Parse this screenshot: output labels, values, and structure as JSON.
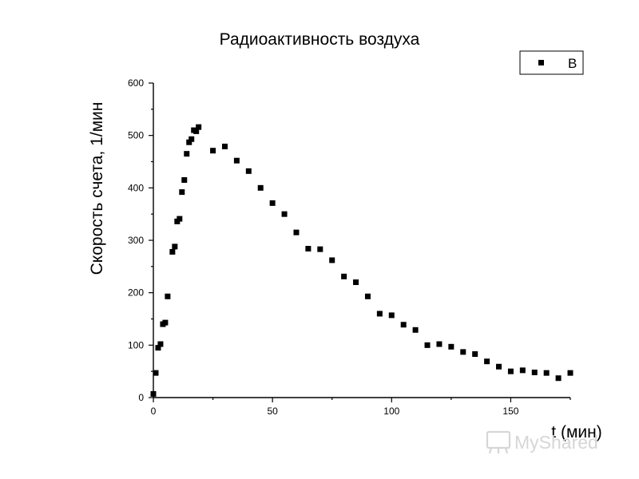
{
  "chart_data": {
    "type": "scatter",
    "title": "Радиоактивность воздуха",
    "xlabel": "t (мин)",
    "ylabel": "Скорость счета, 1/мин",
    "xlim": [
      0,
      175
    ],
    "ylim": [
      0,
      600
    ],
    "xticks": [
      0,
      50,
      100,
      150
    ],
    "yticks": [
      0,
      100,
      200,
      300,
      400,
      500,
      600
    ],
    "xtick_labels": [
      "0",
      "50",
      "100",
      "150"
    ],
    "ytick_labels": [
      "0",
      "100",
      "200",
      "300",
      "400",
      "500",
      "600"
    ],
    "grid": false,
    "legend_position": "top-right",
    "series": [
      {
        "name": "B",
        "color": "#000000",
        "marker": "square",
        "x": [
          0,
          1,
          2,
          3,
          4,
          5,
          6,
          8,
          9,
          10,
          11,
          12,
          13,
          14,
          15,
          16,
          17,
          18,
          19,
          25,
          30,
          35,
          40,
          45,
          50,
          55,
          60,
          65,
          70,
          75,
          80,
          85,
          90,
          95,
          100,
          105,
          110,
          115,
          120,
          125,
          130,
          135,
          140,
          145,
          150,
          155,
          160,
          165,
          170,
          175
        ],
        "y": [
          7,
          47,
          95,
          102,
          140,
          143,
          193,
          278,
          288,
          336,
          341,
          392,
          415,
          465,
          487,
          493,
          510,
          508,
          516,
          471,
          479,
          452,
          432,
          400,
          371,
          350,
          315,
          284,
          283,
          262,
          231,
          220,
          193,
          160,
          157,
          139,
          129,
          100,
          102,
          97,
          87,
          83,
          69,
          59,
          50,
          52,
          48,
          47,
          37,
          47
        ]
      }
    ]
  },
  "watermark": {
    "text": "MyShared",
    "icon": "projector-icon"
  }
}
